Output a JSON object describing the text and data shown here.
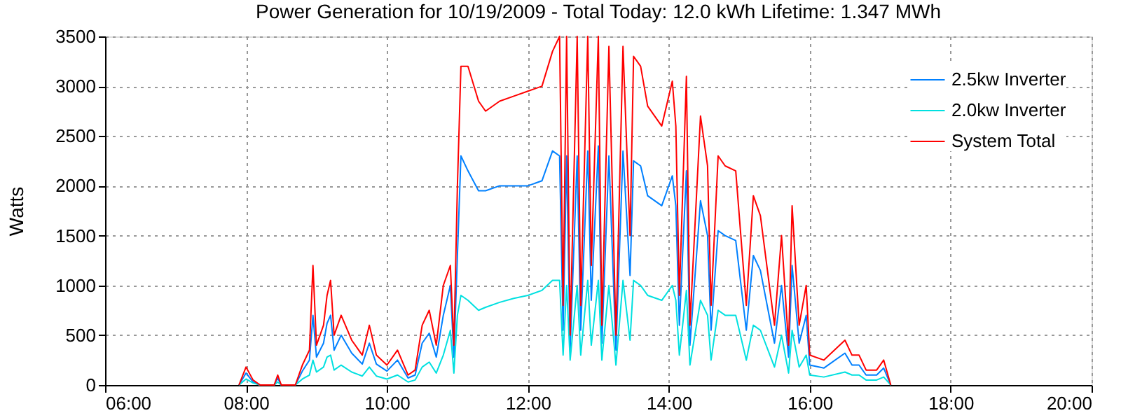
{
  "chart_data": {
    "type": "line",
    "title": "Power Generation for 10/19/2009 - Total Today: 12.0 kWh   Lifetime: 1.347 MWh",
    "ylabel": "Watts",
    "x": [
      7.9,
      8.0,
      8.1,
      8.2,
      8.4,
      8.45,
      8.5,
      8.7,
      8.8,
      8.9,
      8.95,
      9.0,
      9.1,
      9.15,
      9.2,
      9.25,
      9.35,
      9.5,
      9.65,
      9.75,
      9.85,
      10.0,
      10.15,
      10.3,
      10.4,
      10.5,
      10.6,
      10.7,
      10.8,
      10.9,
      10.95,
      11.0,
      11.05,
      11.15,
      11.3,
      11.4,
      11.6,
      11.8,
      12.0,
      12.2,
      12.35,
      12.45,
      12.5,
      12.55,
      12.6,
      12.7,
      12.75,
      12.85,
      12.9,
      13.0,
      13.05,
      13.15,
      13.25,
      13.35,
      13.45,
      13.5,
      13.6,
      13.7,
      13.9,
      14.05,
      14.1,
      14.15,
      14.25,
      14.3,
      14.45,
      14.55,
      14.6,
      14.7,
      14.8,
      14.95,
      15.1,
      15.2,
      15.3,
      15.5,
      15.6,
      15.7,
      15.75,
      15.85,
      15.95,
      16.0,
      16.2,
      16.5,
      16.6,
      16.7,
      16.8,
      16.95,
      17.05,
      17.15
    ],
    "series": [
      {
        "name": "2.5kw Inverter",
        "color": "#0080ff",
        "values": [
          0,
          120,
          30,
          0,
          0,
          70,
          0,
          0,
          140,
          250,
          700,
          280,
          420,
          620,
          700,
          350,
          500,
          320,
          210,
          420,
          210,
          140,
          250,
          70,
          100,
          420,
          520,
          280,
          700,
          1000,
          280,
          1300,
          2300,
          2150,
          1950,
          1950,
          2000,
          2000,
          2000,
          2050,
          2350,
          2300,
          550,
          2300,
          350,
          2300,
          550,
          2350,
          850,
          2400,
          420,
          2300,
          350,
          2350,
          1100,
          2250,
          2200,
          1900,
          1800,
          2100,
          1800,
          600,
          2150,
          400,
          1850,
          1500,
          550,
          1550,
          1500,
          1450,
          550,
          1300,
          1150,
          420,
          1000,
          280,
          1200,
          420,
          700,
          200,
          170,
          320,
          200,
          200,
          100,
          100,
          170,
          0
        ]
      },
      {
        "name": "2.0kw Inverter",
        "color": "#00e0e0",
        "values": [
          0,
          60,
          20,
          0,
          0,
          30,
          0,
          0,
          60,
          100,
          250,
          130,
          180,
          280,
          300,
          150,
          200,
          130,
          90,
          180,
          90,
          60,
          100,
          30,
          50,
          180,
          230,
          120,
          300,
          550,
          120,
          700,
          900,
          850,
          750,
          780,
          830,
          870,
          900,
          950,
          1050,
          1050,
          300,
          1000,
          250,
          1000,
          300,
          1050,
          400,
          1050,
          250,
          1000,
          200,
          1050,
          450,
          1050,
          1000,
          900,
          850,
          1000,
          850,
          300,
          950,
          200,
          850,
          700,
          250,
          750,
          700,
          700,
          250,
          600,
          550,
          180,
          500,
          120,
          550,
          180,
          300,
          100,
          80,
          130,
          100,
          100,
          50,
          50,
          80,
          0
        ]
      },
      {
        "name": "System Total",
        "color": "#ff0000",
        "values": [
          0,
          180,
          50,
          0,
          0,
          100,
          0,
          0,
          200,
          350,
          1200,
          400,
          600,
          900,
          1050,
          500,
          700,
          450,
          300,
          600,
          300,
          200,
          350,
          100,
          150,
          600,
          750,
          400,
          1000,
          1200,
          400,
          2000,
          3200,
          3200,
          2850,
          2750,
          2850,
          2900,
          2950,
          3000,
          3350,
          3500,
          800,
          3500,
          500,
          3500,
          800,
          3500,
          1200,
          3500,
          600,
          3400,
          500,
          3400,
          1500,
          3300,
          3200,
          2800,
          2600,
          3050,
          2600,
          900,
          3100,
          600,
          2700,
          2200,
          800,
          2300,
          2200,
          2150,
          800,
          1900,
          1700,
          600,
          1500,
          400,
          1800,
          600,
          1000,
          300,
          250,
          450,
          300,
          300,
          150,
          150,
          250,
          0
        ]
      }
    ],
    "xlim": [
      6,
      20
    ],
    "xticks": [
      {
        "value": 6,
        "label": "06:00"
      },
      {
        "value": 8,
        "label": "08:00"
      },
      {
        "value": 10,
        "label": "10:00"
      },
      {
        "value": 12,
        "label": "12:00"
      },
      {
        "value": 14,
        "label": "14:00"
      },
      {
        "value": 16,
        "label": "16:00"
      },
      {
        "value": 18,
        "label": "18:00"
      },
      {
        "value": 20,
        "label": "20:00"
      }
    ],
    "ylim": [
      0,
      3500
    ],
    "yticks": [
      0,
      500,
      1000,
      1500,
      2000,
      2500,
      3000,
      3500
    ],
    "grid": true,
    "legend": "top right",
    "marker": "none",
    "line_style": "solid"
  }
}
